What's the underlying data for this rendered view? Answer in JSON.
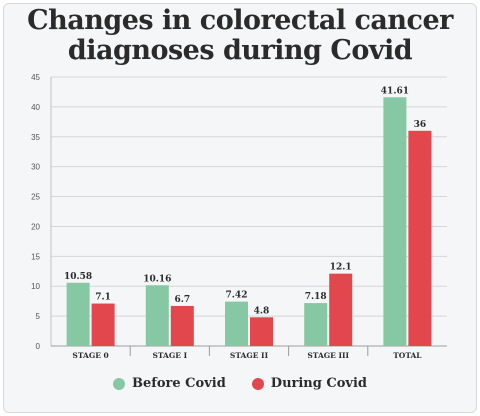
{
  "chart_data": {
    "type": "bar",
    "title_lines": [
      "Changes in colorectal cancer",
      "diagnoses during Covid"
    ],
    "categories": [
      "STAGE 0",
      "STAGE I",
      "STAGE II",
      "STAGE III",
      "TOTAL"
    ],
    "series": [
      {
        "name": "Before Covid",
        "color": "#86c8a3",
        "values": [
          10.58,
          10.16,
          7.42,
          7.18,
          41.61
        ],
        "labels": [
          "10.58",
          "10.16",
          "7.42",
          "7.18",
          "41.61"
        ]
      },
      {
        "name": "During Covid",
        "color": "#e2474e",
        "values": [
          7.1,
          6.7,
          4.8,
          12.1,
          36
        ],
        "labels": [
          "7.1",
          "6.7",
          "4.8",
          "12.1",
          "36"
        ]
      }
    ],
    "ylim": [
      0,
      45
    ],
    "yticks": [
      0,
      5,
      10,
      15,
      20,
      25,
      30,
      35,
      40,
      45
    ],
    "grid": true,
    "legend_position": "bottom-center",
    "xlabel": "",
    "ylabel": ""
  }
}
